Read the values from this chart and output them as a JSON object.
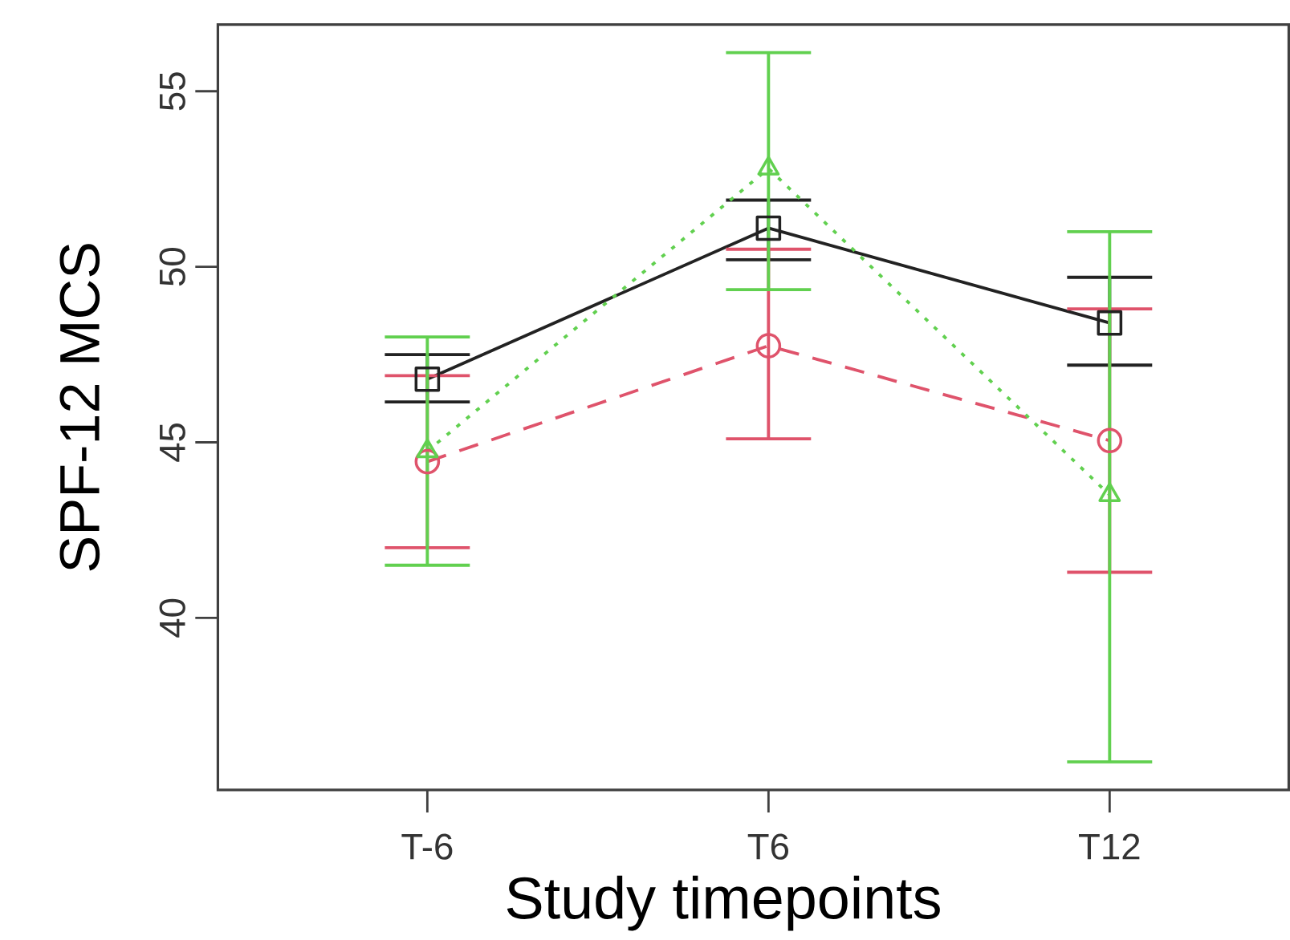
{
  "chart_data": {
    "type": "line",
    "xlabel": "Study timepoints",
    "ylabel": "SPF-12 MCS",
    "categories": [
      "T-6",
      "T6",
      "T12"
    ],
    "ylim": [
      35.1,
      56.9
    ],
    "yticks": [
      40,
      45,
      50,
      55
    ],
    "grid": false,
    "series": [
      {
        "color": "#222222",
        "marker": "square",
        "line_style": "solid",
        "values": [
          46.8,
          51.1,
          48.4
        ],
        "errors": [
          [
            46.15,
            47.5
          ],
          [
            50.2,
            51.9
          ],
          [
            47.2,
            49.7
          ]
        ]
      },
      {
        "color": "#df536b",
        "marker": "circle",
        "line_style": "dashed",
        "values": [
          44.45,
          47.75,
          45.05
        ],
        "errors": [
          [
            42.0,
            46.9
          ],
          [
            45.1,
            50.5
          ],
          [
            41.3,
            48.8
          ]
        ]
      },
      {
        "color": "#61d04f",
        "marker": "triangle",
        "line_style": "dotted",
        "values": [
          44.75,
          52.8,
          43.5
        ],
        "errors": [
          [
            41.5,
            48.0
          ],
          [
            49.35,
            56.1
          ],
          [
            35.9,
            51.0
          ]
        ]
      }
    ]
  }
}
